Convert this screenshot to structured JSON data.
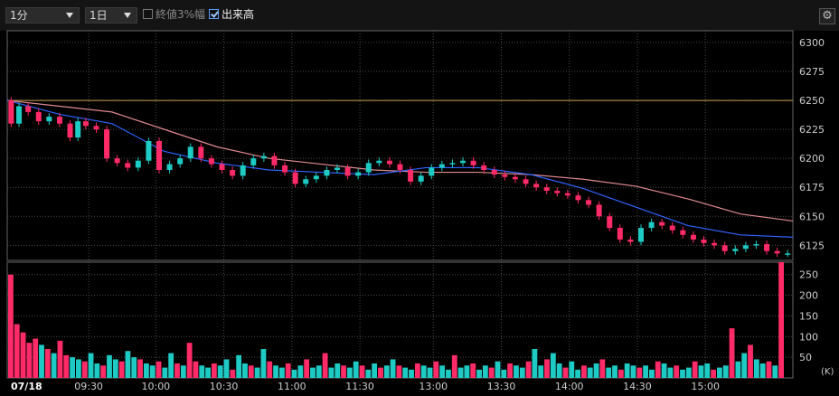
{
  "toolbar": {
    "interval": "1分",
    "span": "1日",
    "option_range_label": "終値3%幅",
    "option_range_checked": false,
    "option_volume_label": "出来高",
    "option_volume_checked": true,
    "settings_icon": "gear-icon"
  },
  "colors": {
    "up": "#1ecbc4",
    "down": "#ff2a68",
    "ma_short": "#2f63ff",
    "ma_long": "#e08a90",
    "ma_mid": "#f0d060",
    "ref_line": "#c8a050",
    "grid": "#4a4a4a"
  },
  "chart_data": [
    {
      "type": "candlestick",
      "date_label": "07/18",
      "x_ticks": [
        "09:30",
        "10:00",
        "10:30",
        "11:00",
        "11:30",
        "13:00",
        "13:30",
        "14:00",
        "14:30",
        "15:00"
      ],
      "y_ticks": [
        6125,
        6150,
        6175,
        6200,
        6225,
        6250,
        6275,
        6300
      ],
      "ylim": [
        6112,
        6307
      ],
      "reference_line": 6250,
      "grid": true,
      "series": [
        {
          "kind": "price_path",
          "x": [
            0,
            3,
            6,
            10,
            14,
            18,
            22,
            26,
            28,
            32,
            36,
            40,
            44,
            48,
            52,
            56,
            60,
            64,
            68,
            72,
            76,
            80,
            84,
            88,
            92,
            96,
            100,
            104,
            108,
            112,
            116,
            120,
            124,
            128,
            132,
            136,
            140,
            144,
            148,
            152,
            156,
            160,
            164,
            168,
            172,
            176,
            180,
            184,
            188,
            192,
            196,
            200,
            204,
            208,
            212,
            216,
            220,
            224,
            228,
            232,
            236,
            240,
            244,
            248,
            252,
            256,
            260,
            264,
            268,
            272,
            276,
            280,
            284,
            288,
            292,
            296,
            300
          ],
          "y": [
            6250,
            6230,
            6245,
            6240,
            6232,
            6236,
            6230,
            6218,
            6232,
            6228,
            6225,
            6200,
            6196,
            6192,
            6198,
            6215,
            6190,
            6195,
            6200,
            6210,
            6200,
            6195,
            6190,
            6185,
            6194,
            6200,
            6202,
            6194,
            6188,
            6178,
            6182,
            6185,
            6190,
            6192,
            6185,
            6188,
            6196,
            6198,
            6195,
            6190,
            6180,
            6185,
            6192,
            6195,
            6196,
            6198,
            6194,
            6190,
            6186,
            6184,
            6182,
            6178,
            6175,
            6172,
            6170,
            6168,
            6164,
            6160,
            6150,
            6140,
            6130,
            6128,
            6140,
            6145,
            6142,
            6138,
            6134,
            6130,
            6127,
            6125,
            6120,
            6122,
            6125,
            6126,
            6120,
            6118,
            6118
          ]
        },
        {
          "name": "",
          "kind": "ma_short",
          "x": [
            0,
            20,
            40,
            60,
            80,
            100,
            120,
            140,
            160,
            180,
            200,
            220,
            240,
            260,
            280,
            300
          ],
          "y": [
            6250,
            6238,
            6230,
            6206,
            6196,
            6190,
            6188,
            6186,
            6192,
            6192,
            6186,
            6174,
            6158,
            6142,
            6134,
            6132
          ]
        },
        {
          "name": "",
          "kind": "ma_long",
          "x": [
            0,
            20,
            40,
            60,
            80,
            100,
            120,
            140,
            160,
            180,
            200,
            220,
            240,
            260,
            280,
            300
          ],
          "y": [
            6250,
            6245,
            6240,
            6225,
            6210,
            6200,
            6195,
            6190,
            6188,
            6188,
            6186,
            6182,
            6176,
            6165,
            6152,
            6146
          ]
        }
      ]
    },
    {
      "type": "bar",
      "name": "volume",
      "unit": "(K)",
      "y_ticks": [
        50,
        100,
        150,
        200,
        250
      ],
      "ylim": [
        0,
        280
      ],
      "values": [
        250,
        130,
        110,
        85,
        95,
        80,
        70,
        60,
        90,
        55,
        50,
        45,
        40,
        60,
        35,
        30,
        55,
        45,
        40,
        65,
        50,
        45,
        35,
        30,
        40,
        25,
        60,
        35,
        30,
        85,
        40,
        30,
        25,
        35,
        30,
        45,
        20,
        55,
        35,
        30,
        25,
        70,
        40,
        30,
        25,
        35,
        20,
        30,
        45,
        25,
        30,
        60,
        25,
        35,
        30,
        25,
        40,
        30,
        20,
        35,
        25,
        30,
        45,
        30,
        25,
        20,
        35,
        30,
        25,
        40,
        30,
        20,
        55,
        25,
        30,
        35,
        20,
        30,
        25,
        40,
        20,
        35,
        30,
        25,
        40,
        70,
        30,
        45,
        60,
        35,
        25,
        40,
        20,
        30,
        25,
        35,
        45,
        25,
        30,
        20,
        35,
        30,
        25,
        30,
        20,
        40,
        35,
        25,
        30,
        20,
        25,
        40,
        30,
        35,
        20,
        25,
        30,
        120,
        40,
        60,
        80,
        45,
        35,
        40,
        30,
        280
      ]
    }
  ]
}
